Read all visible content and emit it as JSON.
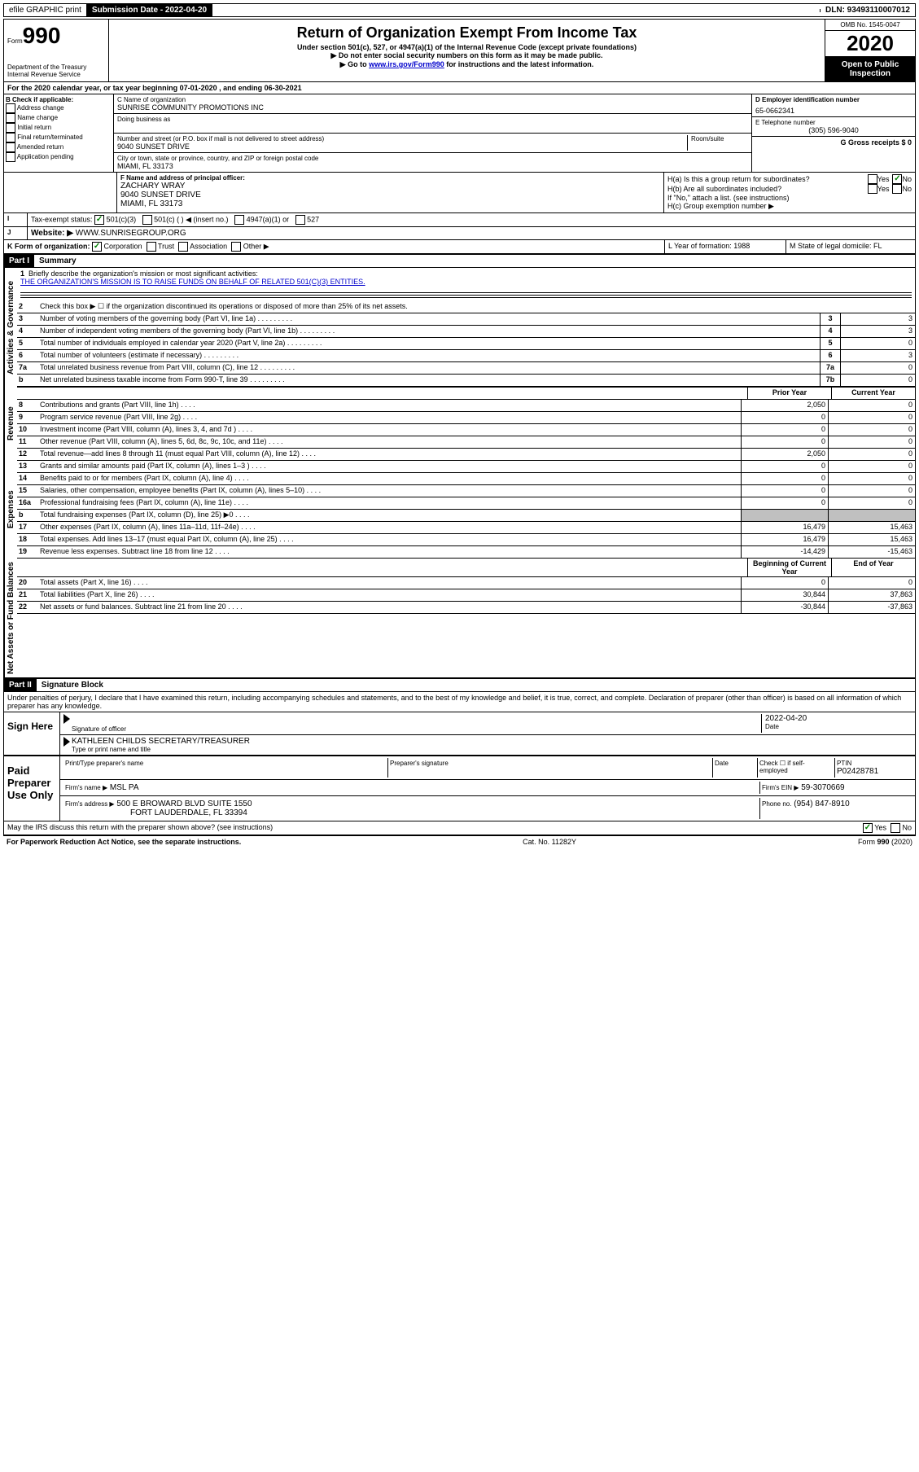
{
  "topbar": {
    "efile": "efile GRAPHIC print",
    "subdate_label": "Submission Date - 2022-04-20",
    "dln": "DLN: 93493110007012"
  },
  "header": {
    "form_word": "Form",
    "form_num": "990",
    "dept": "Department of the Treasury",
    "irs": "Internal Revenue Service",
    "title": "Return of Organization Exempt From Income Tax",
    "sub1": "Under section 501(c), 527, or 4947(a)(1) of the Internal Revenue Code (except private foundations)",
    "sub2": "▶ Do not enter social security numbers on this form as it may be made public.",
    "sub3_pre": "▶ Go to ",
    "sub3_link": "www.irs.gov/Form990",
    "sub3_post": " for instructions and the latest information.",
    "omb": "OMB No. 1545-0047",
    "year": "2020",
    "inspect": "Open to Public Inspection"
  },
  "period": {
    "line_a": "For the 2020 calendar year, or tax year beginning 07-01-2020    , and ending 06-30-2021"
  },
  "checkboxes_b": {
    "title": "B Check if applicable:",
    "items": [
      "Address change",
      "Name change",
      "Initial return",
      "Final return/terminated",
      "Amended return",
      "Application pending"
    ]
  },
  "org": {
    "c_label": "C Name of organization",
    "name": "SUNRISE COMMUNITY PROMOTIONS INC",
    "dba_label": "Doing business as",
    "addr_label": "Number and street (or P.O. box if mail is not delivered to street address)",
    "room_label": "Room/suite",
    "addr": "9040 SUNSET DRIVE",
    "city_label": "City or town, state or province, country, and ZIP or foreign postal code",
    "city": "MIAMI, FL  33173"
  },
  "right_info": {
    "d_label": "D Employer identification number",
    "ein": "65-0662341",
    "e_label": "E Telephone number",
    "phone": "(305) 596-9040",
    "g_label": "G Gross receipts $ 0"
  },
  "officer": {
    "f_label": "F  Name and address of principal officer:",
    "name": "ZACHARY WRAY",
    "addr1": "9040 SUNSET DRIVE",
    "addr2": "MIAMI, FL  33173"
  },
  "h_section": {
    "ha": "H(a)  Is this a group return for subordinates?",
    "hb": "H(b)  Are all subordinates included?",
    "hb_note": "If \"No,\" attach a list. (see instructions)",
    "hc": "H(c)  Group exemption number ▶",
    "yes": "Yes",
    "no": "No"
  },
  "tax_status": {
    "i_label": "Tax-exempt status:",
    "opts": [
      "501(c)(3)",
      "501(c) (   ) ◀ (insert no.)",
      "4947(a)(1) or",
      "527"
    ]
  },
  "website": {
    "j_label": "Website: ▶",
    "value": "WWW.SUNRISEGROUP.ORG"
  },
  "k_line": {
    "label": "K Form of organization:",
    "opts": [
      "Corporation",
      "Trust",
      "Association",
      "Other ▶"
    ],
    "l_label": "L Year of formation: 1988",
    "m_label": "M State of legal domicile: FL"
  },
  "part1": {
    "tag": "Part I",
    "title": "Summary",
    "q1_label": "1",
    "q1": "Briefly describe the organization's mission or most significant activities:",
    "q1_ans": "THE ORGANIZATION'S MISSION IS TO RAISE FUNDS ON BEHALF OF RELATED 501(C)(3) ENTITIES.",
    "q2": "Check this box ▶ ☐  if the organization discontinued its operations or disposed of more than 25% of its net assets.",
    "vert_labels": {
      "gov": "Activities & Governance",
      "rev": "Revenue",
      "exp": "Expenses",
      "net": "Net Assets or Fund Balances"
    },
    "gov_lines": [
      {
        "n": "3",
        "t": "Number of voting members of the governing body (Part VI, line 1a)",
        "v": "3"
      },
      {
        "n": "4",
        "t": "Number of independent voting members of the governing body (Part VI, line 1b)",
        "v": "3"
      },
      {
        "n": "5",
        "t": "Total number of individuals employed in calendar year 2020 (Part V, line 2a)",
        "v": "0"
      },
      {
        "n": "6",
        "t": "Total number of volunteers (estimate if necessary)",
        "v": "3"
      },
      {
        "n": "7a",
        "t": "Total unrelated business revenue from Part VIII, column (C), line 12",
        "v": "0"
      },
      {
        "n": "b",
        "t": "Net unrelated business taxable income from Form 990-T, line 39",
        "box": "7b",
        "v": "0"
      }
    ],
    "col_headers": {
      "prior": "Prior Year",
      "current": "Current Year",
      "begin": "Beginning of Current Year",
      "end": "End of Year"
    },
    "rev_lines": [
      {
        "n": "8",
        "t": "Contributions and grants (Part VIII, line 1h)",
        "p": "2,050",
        "c": "0"
      },
      {
        "n": "9",
        "t": "Program service revenue (Part VIII, line 2g)",
        "p": "0",
        "c": "0"
      },
      {
        "n": "10",
        "t": "Investment income (Part VIII, column (A), lines 3, 4, and 7d )",
        "p": "0",
        "c": "0"
      },
      {
        "n": "11",
        "t": "Other revenue (Part VIII, column (A), lines 5, 6d, 8c, 9c, 10c, and 11e)",
        "p": "0",
        "c": "0"
      },
      {
        "n": "12",
        "t": "Total revenue—add lines 8 through 11 (must equal Part VIII, column (A), line 12)",
        "p": "2,050",
        "c": "0"
      }
    ],
    "exp_lines": [
      {
        "n": "13",
        "t": "Grants and similar amounts paid (Part IX, column (A), lines 1–3 )",
        "p": "0",
        "c": "0"
      },
      {
        "n": "14",
        "t": "Benefits paid to or for members (Part IX, column (A), line 4)",
        "p": "0",
        "c": "0"
      },
      {
        "n": "15",
        "t": "Salaries, other compensation, employee benefits (Part IX, column (A), lines 5–10)",
        "p": "0",
        "c": "0"
      },
      {
        "n": "16a",
        "t": "Professional fundraising fees (Part IX, column (A), line 11e)",
        "p": "0",
        "c": "0"
      },
      {
        "n": "b",
        "t": "Total fundraising expenses (Part IX, column (D), line 25) ▶0",
        "p": "shaded",
        "c": "shaded"
      },
      {
        "n": "17",
        "t": "Other expenses (Part IX, column (A), lines 11a–11d, 11f–24e)",
        "p": "16,479",
        "c": "15,463"
      },
      {
        "n": "18",
        "t": "Total expenses. Add lines 13–17 (must equal Part IX, column (A), line 25)",
        "p": "16,479",
        "c": "15,463"
      },
      {
        "n": "19",
        "t": "Revenue less expenses. Subtract line 18 from line 12",
        "p": "-14,429",
        "c": "-15,463"
      }
    ],
    "net_lines": [
      {
        "n": "20",
        "t": "Total assets (Part X, line 16)",
        "p": "0",
        "c": "0"
      },
      {
        "n": "21",
        "t": "Total liabilities (Part X, line 26)",
        "p": "30,844",
        "c": "37,863"
      },
      {
        "n": "22",
        "t": "Net assets or fund balances. Subtract line 21 from line 20",
        "p": "-30,844",
        "c": "-37,863"
      }
    ]
  },
  "part2": {
    "tag": "Part II",
    "title": "Signature Block",
    "perjury": "Under penalties of perjury, I declare that I have examined this return, including accompanying schedules and statements, and to the best of my knowledge and belief, it is true, correct, and complete. Declaration of preparer (other than officer) is based on all information of which preparer has any knowledge."
  },
  "sign": {
    "label": "Sign Here",
    "sig_officer": "Signature of officer",
    "date_label": "Date",
    "date_val": "2022-04-20",
    "name": "KATHLEEN CHILDS  SECRETARY/TREASURER",
    "name_label": "Type or print name and title"
  },
  "preparer": {
    "label": "Paid Preparer Use Only",
    "col1": "Print/Type preparer's name",
    "col2": "Preparer's signature",
    "col3": "Date",
    "check_label": "Check ☐ if self-employed",
    "ptin_label": "PTIN",
    "ptin": "P02428781",
    "firm_name_label": "Firm's name    ▶",
    "firm_name": "MSL PA",
    "firm_ein_label": "Firm's EIN ▶",
    "firm_ein": "59-3070669",
    "firm_addr_label": "Firm's address ▶",
    "firm_addr1": "500 E BROWARD BLVD SUITE 1550",
    "firm_addr2": "FORT LAUDERDALE, FL  33394",
    "phone_label": "Phone no.",
    "phone": "(954) 847-8910"
  },
  "discuss": {
    "q": "May the IRS discuss this return with the preparer shown above? (see instructions)",
    "yes": "Yes",
    "no": "No"
  },
  "footer": {
    "left": "For Paperwork Reduction Act Notice, see the separate instructions.",
    "mid": "Cat. No. 11282Y",
    "right": "Form 990 (2020)"
  }
}
